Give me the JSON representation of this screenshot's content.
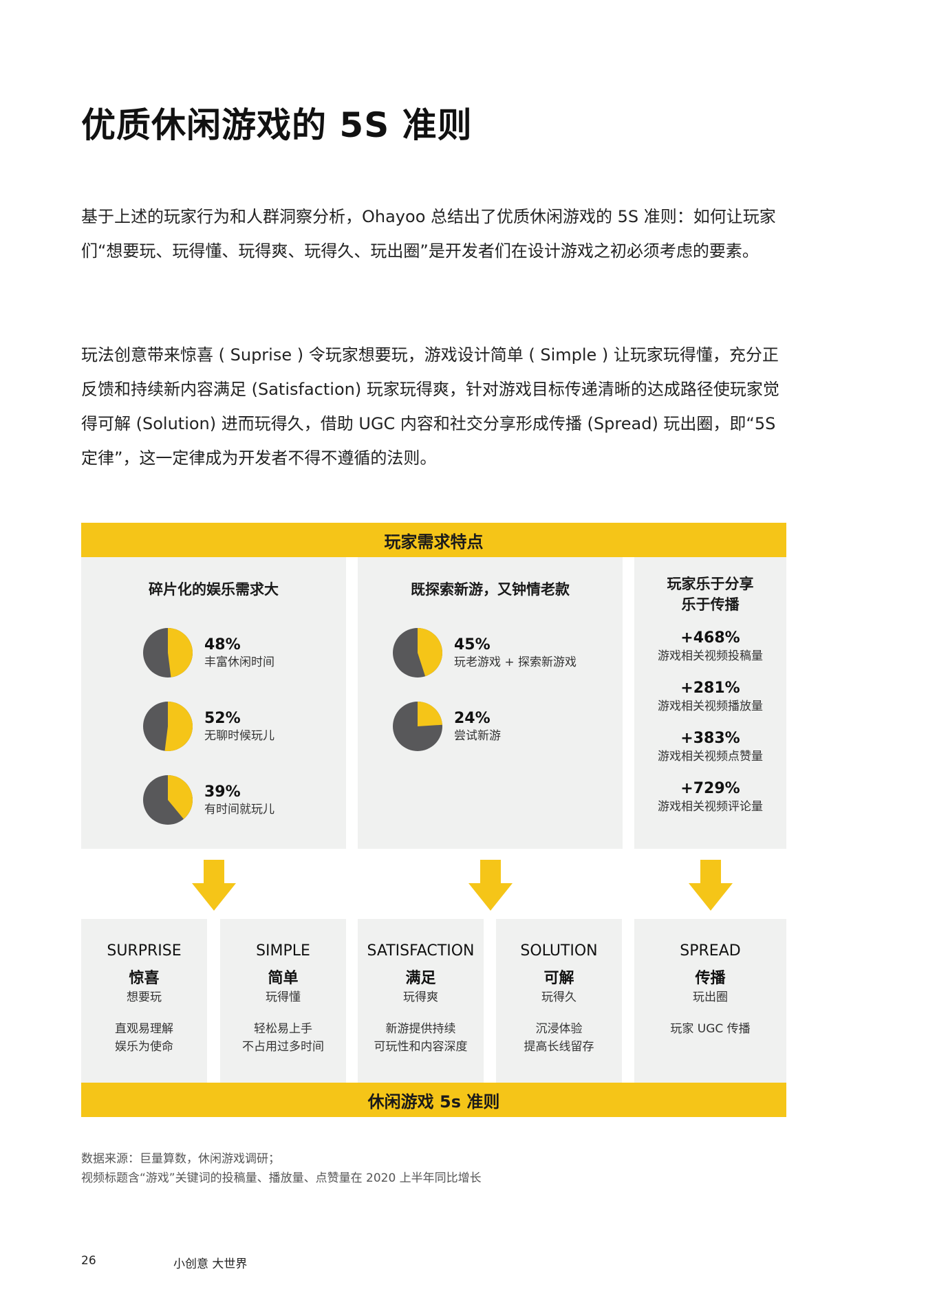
{
  "title": "优质休闲游戏的 5S 准则",
  "paragraphs": [
    "基于上述的玩家行为和人群洞察分析，Ohayoo 总结出了优质休闲游戏的 5S 准则：如何让玩家们“想要玩、玩得懂、玩得爽、玩得久、玩出圈”是开发者们在设计游戏之初必须考虑的要素。",
    "玩法创意带来惊喜 ( Suprise ) 令玩家想要玩，游戏设计简单 ( Simple ) 让玩家玩得懂，充分正反馈和持续新内容满足 (Satisfaction) 玩家玩得爽，针对游戏目标传递清晰的达成路径使玩家觉得可解 (Solution) 进而玩得久，借助 UGC 内容和社交分享形成传播 (Spread) 玩出圈，即“5S 定律”，这一定律成为开发者不得不遵循的法则。"
  ],
  "diagram": {
    "top_bar": "玩家需求特点",
    "panel1": {
      "heading": "碎片化的娱乐需求大",
      "stats": [
        {
          "value": "48%",
          "label": "丰富休闲时间",
          "fraction": 0.48
        },
        {
          "value": "52%",
          "label": "无聊时候玩儿",
          "fraction": 0.52
        },
        {
          "value": "39%",
          "label": "有时间就玩儿",
          "fraction": 0.39
        }
      ]
    },
    "panel2": {
      "heading": "既探索新游，又钟情老款",
      "stats": [
        {
          "value": "45%",
          "label": "玩老游戏 + 探索新游戏",
          "fraction": 0.45
        },
        {
          "value": "24%",
          "label": "尝试新游",
          "fraction": 0.24
        }
      ]
    },
    "panel3": {
      "heading_line1": "玩家乐于分享",
      "heading_line2": "乐于传播",
      "items": [
        {
          "value": "+468%",
          "label": "游戏相关视频投稿量"
        },
        {
          "value": "+281%",
          "label": "游戏相关视频播放量"
        },
        {
          "value": "+383%",
          "label": "游戏相关视频点赞量"
        },
        {
          "value": "+729%",
          "label": "游戏相关视频评论量"
        }
      ]
    },
    "cards": [
      {
        "en": "SURPRISE",
        "cn": "惊喜",
        "sub": "想要玩",
        "desc1": "直观易理解",
        "desc2": "娱乐为使命"
      },
      {
        "en": "SIMPLE",
        "cn": "简单",
        "sub": "玩得懂",
        "desc1": "轻松易上手",
        "desc2": "不占用过多时间"
      },
      {
        "en": "SATISFACTION",
        "cn": "满足",
        "sub": "玩得爽",
        "desc1": "新游提供持续",
        "desc2": "可玩性和内容深度"
      },
      {
        "en": "SOLUTION",
        "cn": "可解",
        "sub": "玩得久",
        "desc1": "沉浸体验",
        "desc2": "提高长线留存"
      },
      {
        "en": "SPREAD",
        "cn": "传播",
        "sub": "玩出圈",
        "desc1": "玩家 UGC 传播",
        "desc2": ""
      }
    ],
    "bottom_bar": "休闲游戏 5s 准则"
  },
  "sources": [
    "数据来源：巨量算数，休闲游戏调研；",
    "视频标题含“游戏”关键词的投稿量、播放量、点赞量在 2020 上半年同比增长"
  ],
  "footer": {
    "page_number": "26",
    "tagline": "小创意  大世界"
  },
  "colors": {
    "accent": "#F5C518",
    "dark": "#58585A",
    "panel": "#F0F1F0"
  }
}
